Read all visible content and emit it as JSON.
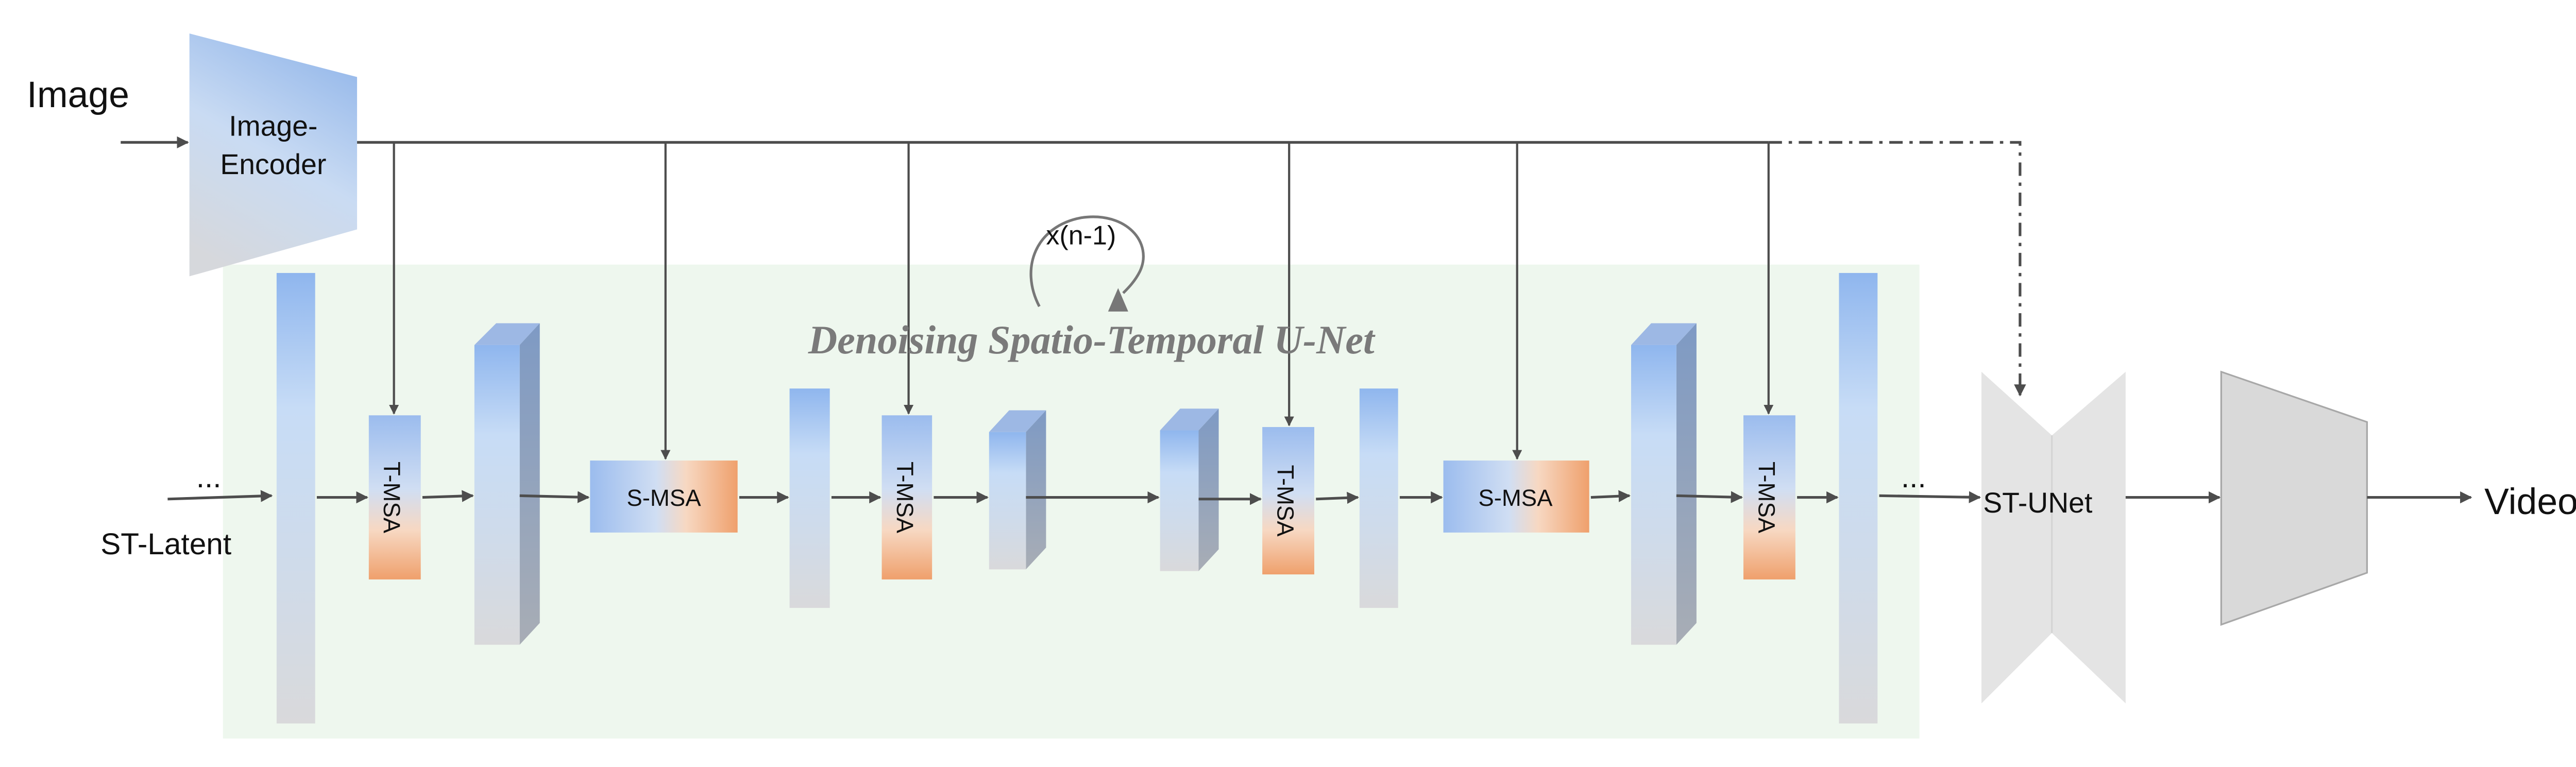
{
  "input_label": "Image",
  "encoder": {
    "line1": "Image-",
    "line2": "Encoder"
  },
  "latent": {
    "label": "ST-Latent",
    "ellipsis": "..."
  },
  "unet": {
    "title": "Denoising Spatio-Temporal U-Net",
    "loop_label": "x(n-1)",
    "tmsa_label": "T-MSA",
    "smsa_label": "S-MSA"
  },
  "right_ellipsis": "...",
  "st_unet_label": "ST-UNet",
  "output_label": "Video",
  "colors": {
    "panel": "#eef7ee",
    "arrow": "#4d4d4d",
    "block_top": "#8fb6ee",
    "block_bottom": "#d9d9d9",
    "attention_orange": "#f0a070",
    "title_gray": "#7a7a7a"
  }
}
